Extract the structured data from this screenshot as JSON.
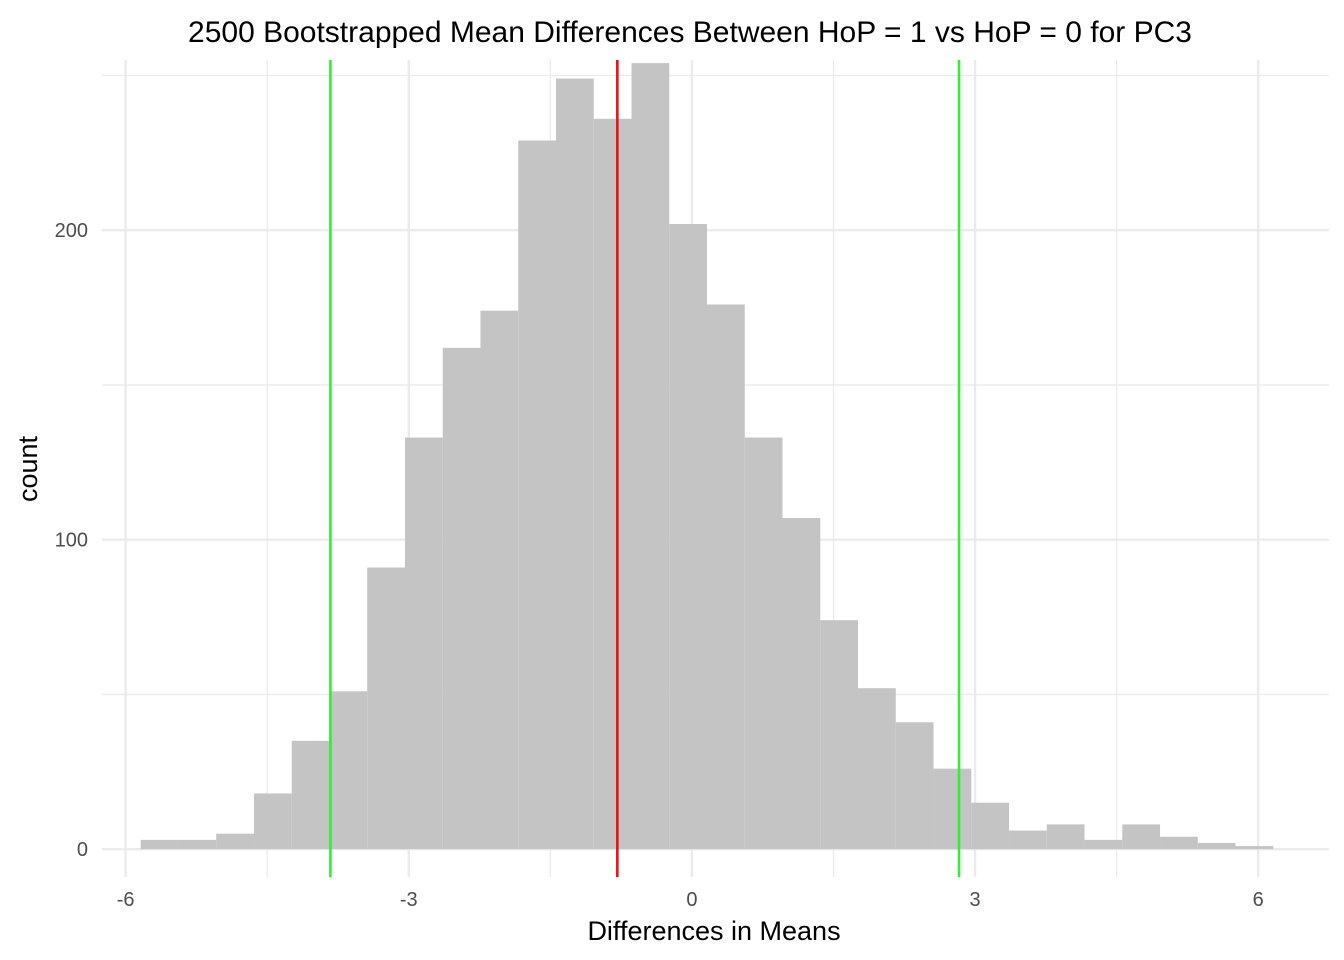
{
  "chart_data": {
    "type": "bar",
    "subtype": "histogram",
    "title": "2500 Bootstrapped Mean Differences Between HoP = 1 vs HoP = 0 for PC3",
    "xlabel": "Differences in Means",
    "ylabel": "count",
    "xlim": [
      -6.25,
      6.75
    ],
    "ylim": [
      -9,
      255
    ],
    "x_ticks": [
      {
        "value": -6,
        "label": "-6"
      },
      {
        "value": -3,
        "label": "-3"
      },
      {
        "value": 0,
        "label": "0"
      },
      {
        "value": 3,
        "label": "3"
      },
      {
        "value": 6,
        "label": "6"
      }
    ],
    "y_ticks": [
      {
        "value": 0,
        "label": "0"
      },
      {
        "value": 100,
        "label": "100"
      },
      {
        "value": 200,
        "label": "200"
      }
    ],
    "grid": true,
    "bars": [
      {
        "x0": -5.84,
        "x1": -5.44,
        "count": 3
      },
      {
        "x0": -5.44,
        "x1": -5.04,
        "count": 3
      },
      {
        "x0": -5.04,
        "x1": -4.64,
        "count": 5
      },
      {
        "x0": -4.64,
        "x1": -4.24,
        "count": 18
      },
      {
        "x0": -4.24,
        "x1": -3.84,
        "count": 35
      },
      {
        "x0": -3.84,
        "x1": -3.44,
        "count": 51
      },
      {
        "x0": -3.44,
        "x1": -3.04,
        "count": 91
      },
      {
        "x0": -3.04,
        "x1": -2.64,
        "count": 133
      },
      {
        "x0": -2.64,
        "x1": -2.24,
        "count": 162
      },
      {
        "x0": -2.24,
        "x1": -1.84,
        "count": 174
      },
      {
        "x0": -1.84,
        "x1": -1.44,
        "count": 229
      },
      {
        "x0": -1.44,
        "x1": -1.04,
        "count": 249
      },
      {
        "x0": -1.04,
        "x1": -0.64,
        "count": 236
      },
      {
        "x0": -0.64,
        "x1": -0.24,
        "count": 254
      },
      {
        "x0": -0.24,
        "x1": 0.16,
        "count": 202
      },
      {
        "x0": 0.16,
        "x1": 0.56,
        "count": 176
      },
      {
        "x0": 0.56,
        "x1": 0.96,
        "count": 133
      },
      {
        "x0": 0.96,
        "x1": 1.36,
        "count": 107
      },
      {
        "x0": 1.36,
        "x1": 1.76,
        "count": 74
      },
      {
        "x0": 1.76,
        "x1": 2.16,
        "count": 52
      },
      {
        "x0": 2.16,
        "x1": 2.56,
        "count": 41
      },
      {
        "x0": 2.56,
        "x1": 2.96,
        "count": 26
      },
      {
        "x0": 2.96,
        "x1": 3.36,
        "count": 15
      },
      {
        "x0": 3.36,
        "x1": 3.76,
        "count": 6
      },
      {
        "x0": 3.76,
        "x1": 4.16,
        "count": 8
      },
      {
        "x0": 4.16,
        "x1": 4.56,
        "count": 3
      },
      {
        "x0": 4.56,
        "x1": 4.96,
        "count": 8
      },
      {
        "x0": 4.96,
        "x1": 5.36,
        "count": 4
      },
      {
        "x0": 5.36,
        "x1": 5.76,
        "count": 2
      },
      {
        "x0": 5.76,
        "x1": 6.16,
        "count": 1
      }
    ],
    "bar_color": "#c4c4c4",
    "reference_lines": [
      {
        "x": -3.83,
        "color": "#33ee33"
      },
      {
        "x": -0.79,
        "color": "#ee1111"
      },
      {
        "x": 2.83,
        "color": "#33ee33"
      }
    ]
  }
}
